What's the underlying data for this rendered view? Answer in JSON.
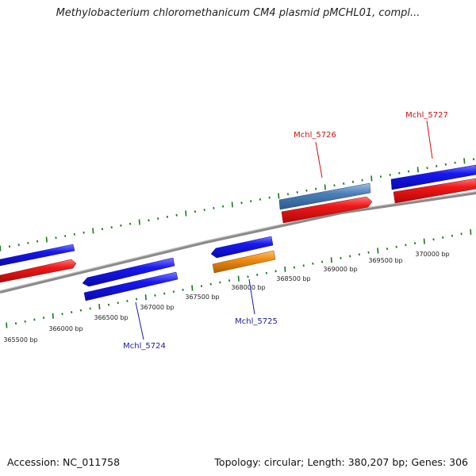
{
  "title": "Methylobacterium chloromethanicum CM4 plasmid pMCHL01, compl...",
  "footer": {
    "accession_label": "Accession:",
    "accession": "NC_011758",
    "topology_label": "Topology:",
    "topology": "circular",
    "length_label": "Length:",
    "length": "380,207 bp",
    "genes_label": "Genes:",
    "genes": "306"
  },
  "ruler": {
    "ticks": [
      {
        "label": "365500 bp"
      },
      {
        "label": "366000 bp"
      },
      {
        "label": "366500 bp"
      },
      {
        "label": "367000 bp"
      },
      {
        "label": "367500 bp"
      },
      {
        "label": "368000 bp"
      },
      {
        "label": "368500 bp"
      },
      {
        "label": "369000 bp"
      },
      {
        "label": "369500 bp"
      },
      {
        "label": "370000 bp"
      }
    ]
  },
  "genes": [
    {
      "name": "Mchl_5724",
      "label_color": "#1a1aa8"
    },
    {
      "name": "Mchl_5725",
      "label_color": "#1a1aa8"
    },
    {
      "name": "Mchl_5726",
      "label_color": "#cc1111"
    },
    {
      "name": "Mchl_5727",
      "label_color": "#cc1111"
    }
  ],
  "colors": {
    "forward_gene": "#1010ee",
    "reverse_gene": "#ee1111",
    "highlight_blue": "#4a7fb8",
    "highlight_orange": "#f08c10",
    "backbone": "#888888",
    "tick": "#1a7a1a"
  }
}
